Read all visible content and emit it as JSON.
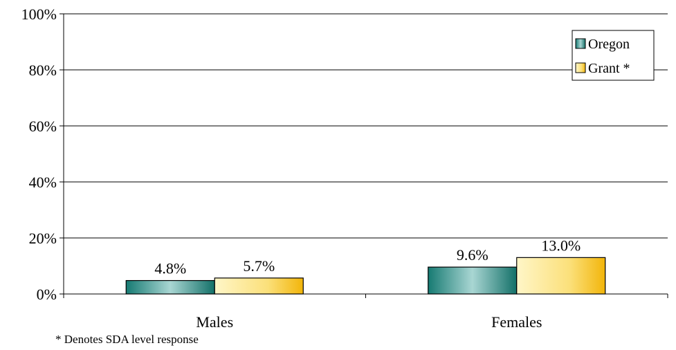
{
  "chart_data": {
    "type": "bar",
    "categories": [
      "Males",
      "Females"
    ],
    "series": [
      {
        "name": "Oregon",
        "values": [
          4.8,
          9.6
        ],
        "labels": [
          "4.8%",
          "9.6%"
        ],
        "color": "#2e8b84"
      },
      {
        "name": "Grant *",
        "values": [
          5.7,
          13.0
        ],
        "labels": [
          "5.7%",
          "13.0%"
        ],
        "color": "#f5c21b"
      }
    ],
    "ylim": [
      0,
      100
    ],
    "yticks": [
      0,
      20,
      40,
      60,
      80,
      100
    ],
    "ytick_labels": [
      "0%",
      "20%",
      "40%",
      "60%",
      "80%",
      "100%"
    ],
    "grid": true,
    "legend_position": "top-right",
    "footnote": "* Denotes SDA level response"
  }
}
